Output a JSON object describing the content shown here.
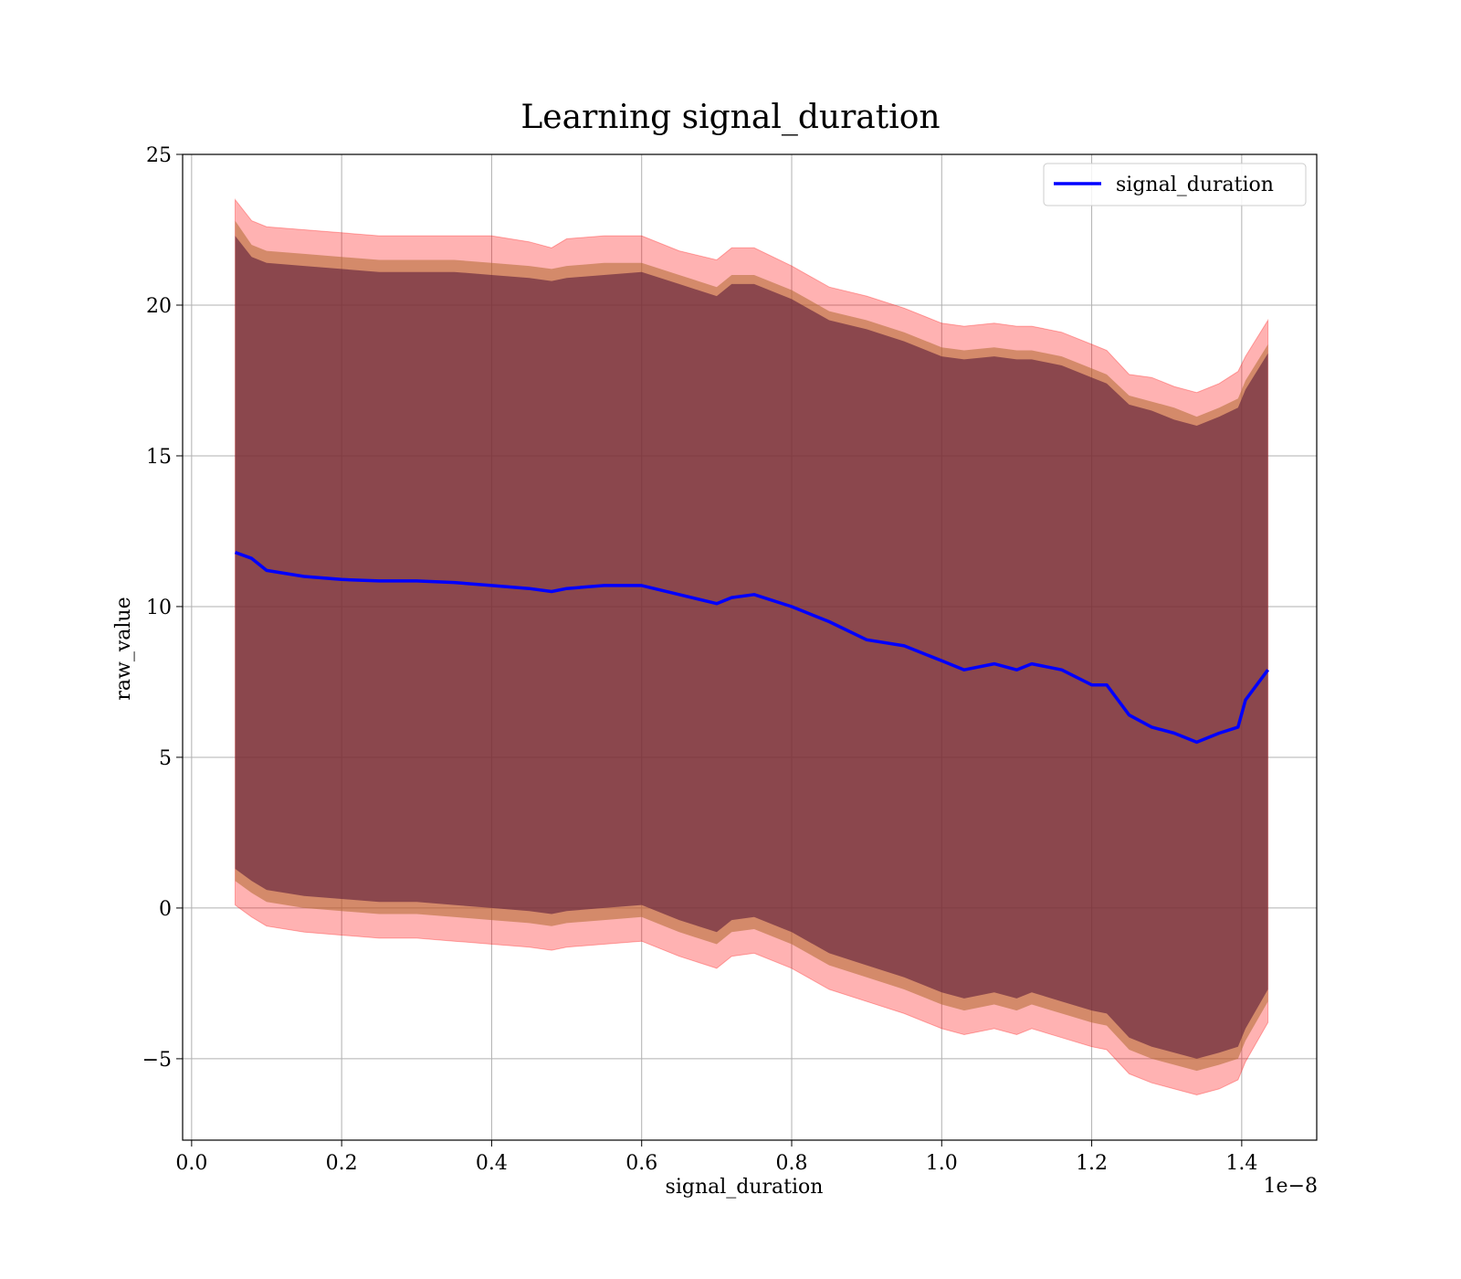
{
  "chart_data": {
    "type": "line",
    "title": "Learning signal_duration",
    "xlabel": "signal_duration",
    "ylabel": "raw_value",
    "x_offset_label": "1e−8",
    "xlim": [
      -0.012,
      1.5
    ],
    "ylim": [
      -7.7,
      25
    ],
    "grid": true,
    "legend_position": "top-right",
    "x_ticks": [
      0.0,
      0.2,
      0.4,
      0.6,
      0.8,
      1.0,
      1.2,
      1.4
    ],
    "x_tick_labels": [
      "0.0",
      "0.2",
      "0.4",
      "0.6",
      "0.8",
      "1.0",
      "1.2",
      "1.4"
    ],
    "y_ticks": [
      -5,
      0,
      5,
      10,
      15,
      20,
      25
    ],
    "y_tick_labels": [
      "−5",
      "0",
      "5",
      "10",
      "15",
      "20",
      "25"
    ],
    "colors": {
      "line": "#0000ff",
      "band_outer": "#ff0000",
      "band_middle": "#b06a30",
      "band_inner": "#5a1a3a"
    },
    "x": [
      0.058,
      0.08,
      0.1,
      0.15,
      0.2,
      0.25,
      0.3,
      0.35,
      0.4,
      0.45,
      0.48,
      0.5,
      0.55,
      0.6,
      0.65,
      0.7,
      0.72,
      0.75,
      0.8,
      0.85,
      0.9,
      0.95,
      1.0,
      1.03,
      1.07,
      1.1,
      1.12,
      1.16,
      1.2,
      1.22,
      1.25,
      1.28,
      1.31,
      1.34,
      1.37,
      1.395,
      1.405,
      1.435
    ],
    "series": [
      {
        "name": "signal_duration",
        "values": [
          11.8,
          11.6,
          11.2,
          11.0,
          10.9,
          10.85,
          10.85,
          10.8,
          10.7,
          10.6,
          10.5,
          10.6,
          10.7,
          10.7,
          10.4,
          10.1,
          10.3,
          10.4,
          10.0,
          9.5,
          8.9,
          8.7,
          8.2,
          7.9,
          8.1,
          7.9,
          8.1,
          7.9,
          7.4,
          7.4,
          6.4,
          6.0,
          5.8,
          5.5,
          5.8,
          6.0,
          6.9,
          7.9
        ]
      }
    ],
    "band_upper_outer": [
      23.5,
      22.8,
      22.6,
      22.5,
      22.4,
      22.3,
      22.3,
      22.3,
      22.3,
      22.1,
      21.9,
      22.2,
      22.3,
      22.3,
      21.8,
      21.5,
      21.9,
      21.9,
      21.3,
      20.6,
      20.3,
      19.9,
      19.4,
      19.3,
      19.4,
      19.3,
      19.3,
      19.1,
      18.7,
      18.5,
      17.7,
      17.6,
      17.3,
      17.1,
      17.4,
      17.8,
      18.3,
      19.5
    ],
    "band_upper_middle": [
      22.8,
      22.0,
      21.8,
      21.7,
      21.6,
      21.5,
      21.5,
      21.5,
      21.4,
      21.3,
      21.2,
      21.3,
      21.4,
      21.4,
      21.0,
      20.6,
      21.0,
      21.0,
      20.5,
      19.8,
      19.5,
      19.1,
      18.6,
      18.5,
      18.6,
      18.5,
      18.5,
      18.3,
      17.9,
      17.7,
      17.0,
      16.8,
      16.6,
      16.3,
      16.6,
      16.9,
      17.5,
      18.7
    ],
    "band_upper_inner": [
      22.3,
      21.6,
      21.4,
      21.3,
      21.2,
      21.1,
      21.1,
      21.1,
      21.0,
      20.9,
      20.8,
      20.9,
      21.0,
      21.1,
      20.7,
      20.3,
      20.7,
      20.7,
      20.2,
      19.5,
      19.2,
      18.8,
      18.3,
      18.2,
      18.3,
      18.2,
      18.2,
      18.0,
      17.6,
      17.4,
      16.7,
      16.5,
      16.2,
      16.0,
      16.3,
      16.6,
      17.2,
      18.4
    ],
    "band_lower_inner": [
      1.3,
      0.9,
      0.6,
      0.4,
      0.3,
      0.2,
      0.2,
      0.1,
      0.0,
      -0.1,
      -0.2,
      -0.1,
      0.0,
      0.1,
      -0.4,
      -0.8,
      -0.4,
      -0.3,
      -0.8,
      -1.5,
      -1.9,
      -2.3,
      -2.8,
      -3.0,
      -2.8,
      -3.0,
      -2.8,
      -3.1,
      -3.4,
      -3.5,
      -4.3,
      -4.6,
      -4.8,
      -5.0,
      -4.8,
      -4.6,
      -4.0,
      -2.7
    ],
    "band_lower_middle": [
      0.9,
      0.5,
      0.2,
      0.0,
      -0.1,
      -0.2,
      -0.2,
      -0.3,
      -0.4,
      -0.5,
      -0.6,
      -0.5,
      -0.4,
      -0.3,
      -0.8,
      -1.2,
      -0.8,
      -0.7,
      -1.2,
      -1.9,
      -2.3,
      -2.7,
      -3.2,
      -3.4,
      -3.2,
      -3.4,
      -3.2,
      -3.5,
      -3.8,
      -3.9,
      -4.7,
      -5.0,
      -5.2,
      -5.4,
      -5.2,
      -5.0,
      -4.4,
      -3.1
    ],
    "band_lower_outer": [
      0.1,
      -0.3,
      -0.6,
      -0.8,
      -0.9,
      -1.0,
      -1.0,
      -1.1,
      -1.2,
      -1.3,
      -1.4,
      -1.3,
      -1.2,
      -1.1,
      -1.6,
      -2.0,
      -1.6,
      -1.5,
      -2.0,
      -2.7,
      -3.1,
      -3.5,
      -4.0,
      -4.2,
      -4.0,
      -4.2,
      -4.0,
      -4.3,
      -4.6,
      -4.7,
      -5.5,
      -5.8,
      -6.0,
      -6.2,
      -6.0,
      -5.7,
      -5.1,
      -3.8
    ]
  }
}
